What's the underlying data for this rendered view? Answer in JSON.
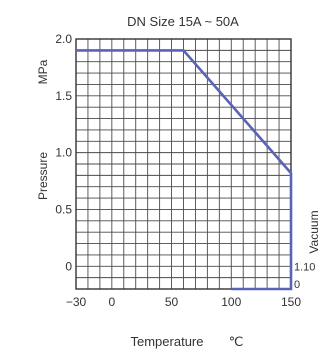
{
  "chart_data": {
    "type": "line",
    "title": "DN Size 15A ~ 50A",
    "xlabel": "Temperature",
    "xunit": "℃",
    "ylabel_left": "Pressure",
    "ylabel_left_unit": "MPa",
    "ylabel_right": "Vacuum",
    "x_ticks": [
      "−30",
      "0",
      "50",
      "100",
      "150"
    ],
    "x_tick_values": [
      -30,
      0,
      50,
      100,
      150
    ],
    "y_ticks_left": [
      "2.0",
      "1.5",
      "1.0",
      "0.5",
      "0"
    ],
    "y_tick_values_left": [
      2.0,
      1.5,
      1.0,
      0.5,
      0
    ],
    "y_ticks_right": [
      "1.10",
      "0"
    ],
    "xlim": [
      -30,
      150
    ],
    "ylim": [
      -0.2,
      2.0
    ],
    "grid": true,
    "line_color": "#5a63b5",
    "series": [
      {
        "x": [
          -30,
          60,
          150,
          150,
          150,
          100
        ],
        "y": [
          1.9,
          1.9,
          0.82,
          -0.12,
          -0.2,
          -0.2
        ]
      }
    ]
  }
}
